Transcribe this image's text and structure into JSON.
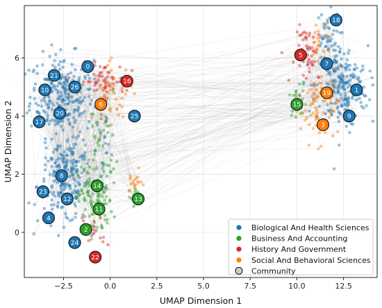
{
  "chart_data": {
    "type": "scatter",
    "title": "",
    "xlabel": "UMAP Dimension 1",
    "ylabel": "UMAP Dimension 2",
    "xlim": [
      -4.6,
      14.3
    ],
    "ylim": [
      -1.55,
      7.8
    ],
    "x_ticks": [
      -2.5,
      0.0,
      2.5,
      5.0,
      7.5,
      10.0,
      12.5
    ],
    "x_tick_labels": [
      "−2.5",
      "0.0",
      "2.5",
      "5.0",
      "7.5",
      "10.0",
      "12.5"
    ],
    "y_ticks": [
      0,
      2,
      4,
      6
    ],
    "y_tick_labels": [
      "0",
      "2",
      "4",
      "6"
    ],
    "grid": true,
    "legend_position": "bottom-right",
    "categories": [
      {
        "key": "bio",
        "label": "Biological And Health Sciences",
        "color": "#1f77b4"
      },
      {
        "key": "bus",
        "label": "Business And Accounting",
        "color": "#2ca02c"
      },
      {
        "key": "his",
        "label": "History And Government",
        "color": "#d62728"
      },
      {
        "key": "soc",
        "label": "Social And Behavioral Sciences",
        "color": "#ff7f0e"
      }
    ],
    "community_legend_label": "Community",
    "communities": [
      {
        "id": "0",
        "x": -1.2,
        "y": 5.7,
        "category": "bio"
      },
      {
        "id": "1",
        "x": 13.2,
        "y": 4.9,
        "category": "bio"
      },
      {
        "id": "2",
        "x": -1.3,
        "y": 0.1,
        "category": "bus"
      },
      {
        "id": "3",
        "x": 11.4,
        "y": 3.7,
        "category": "soc"
      },
      {
        "id": "4",
        "x": -3.3,
        "y": 0.5,
        "category": "bio"
      },
      {
        "id": "5",
        "x": 10.2,
        "y": 6.1,
        "category": "his"
      },
      {
        "id": "6",
        "x": -0.5,
        "y": 4.4,
        "category": "soc"
      },
      {
        "id": "7",
        "x": 11.6,
        "y": 5.8,
        "category": "bio"
      },
      {
        "id": "8",
        "x": -2.6,
        "y": 1.95,
        "category": "bio"
      },
      {
        "id": "9",
        "x": 12.8,
        "y": 4.0,
        "category": "bio"
      },
      {
        "id": "10",
        "x": -3.5,
        "y": 4.9,
        "category": "bio"
      },
      {
        "id": "11",
        "x": -0.6,
        "y": 0.8,
        "category": "bus"
      },
      {
        "id": "12",
        "x": -2.3,
        "y": 1.15,
        "category": "bio"
      },
      {
        "id": "13",
        "x": 1.5,
        "y": 1.15,
        "category": "bus"
      },
      {
        "id": "14",
        "x": -0.7,
        "y": 1.6,
        "category": "bus"
      },
      {
        "id": "15",
        "x": 10.0,
        "y": 4.4,
        "category": "bus"
      },
      {
        "id": "16",
        "x": 0.9,
        "y": 5.2,
        "category": "his"
      },
      {
        "id": "17",
        "x": -3.8,
        "y": 3.8,
        "category": "bio"
      },
      {
        "id": "18",
        "x": 12.1,
        "y": 7.3,
        "category": "bio"
      },
      {
        "id": "19",
        "x": 11.6,
        "y": 4.8,
        "category": "soc"
      },
      {
        "id": "20",
        "x": -2.7,
        "y": 4.1,
        "category": "bio"
      },
      {
        "id": "21",
        "x": -3.0,
        "y": 5.4,
        "category": "bio"
      },
      {
        "id": "22",
        "x": -0.8,
        "y": -0.85,
        "category": "his"
      },
      {
        "id": "23",
        "x": -3.6,
        "y": 1.4,
        "category": "bio"
      },
      {
        "id": "24",
        "x": -1.9,
        "y": -0.35,
        "category": "bio"
      },
      {
        "id": "25",
        "x": 1.3,
        "y": 4.0,
        "category": "bio"
      },
      {
        "id": "26",
        "x": -1.9,
        "y": 5.0,
        "category": "bio"
      }
    ],
    "point_clusters": [
      {
        "category": "bio",
        "cx": -2.6,
        "cy": 4.7,
        "sx": 0.85,
        "sy": 0.7,
        "n": 280
      },
      {
        "category": "bio",
        "cx": -2.5,
        "cy": 1.6,
        "sx": 0.7,
        "sy": 0.65,
        "n": 170
      },
      {
        "category": "bio",
        "cx": -2.0,
        "cy": 2.6,
        "sx": 0.5,
        "sy": 0.3,
        "n": 50
      },
      {
        "category": "bio",
        "cx": -0.3,
        "cy": 3.0,
        "sx": 0.3,
        "sy": 0.6,
        "n": 22
      },
      {
        "category": "bio",
        "cx": 12.4,
        "cy": 5.0,
        "sx": 0.7,
        "sy": 0.7,
        "n": 220
      },
      {
        "category": "bio",
        "cx": 11.6,
        "cy": 6.7,
        "sx": 0.35,
        "sy": 0.45,
        "n": 45
      },
      {
        "category": "bus",
        "cx": -0.8,
        "cy": 1.1,
        "sx": 0.45,
        "sy": 0.6,
        "n": 110
      },
      {
        "category": "bus",
        "cx": -0.5,
        "cy": 3.2,
        "sx": 0.4,
        "sy": 0.8,
        "n": 35
      },
      {
        "category": "bus",
        "cx": 1.3,
        "cy": 1.2,
        "sx": 0.15,
        "sy": 0.2,
        "n": 12
      },
      {
        "category": "bus",
        "cx": 10.1,
        "cy": 4.6,
        "sx": 0.25,
        "sy": 0.3,
        "n": 22
      },
      {
        "category": "his",
        "cx": -0.4,
        "cy": 5.2,
        "sx": 0.6,
        "sy": 0.3,
        "n": 60
      },
      {
        "category": "his",
        "cx": 10.7,
        "cy": 6.1,
        "sx": 0.4,
        "sy": 0.5,
        "n": 55
      },
      {
        "category": "his",
        "cx": -0.9,
        "cy": 0.0,
        "sx": 0.3,
        "sy": 0.4,
        "n": 14
      },
      {
        "category": "soc",
        "cx": 0.2,
        "cy": 4.8,
        "sx": 0.55,
        "sy": 0.5,
        "n": 45
      },
      {
        "category": "soc",
        "cx": 11.2,
        "cy": 4.3,
        "sx": 0.5,
        "sy": 0.6,
        "n": 75
      },
      {
        "category": "soc",
        "cx": 1.3,
        "cy": 1.7,
        "sx": 0.2,
        "sy": 0.2,
        "n": 18
      },
      {
        "category": "soc",
        "cx": 11.2,
        "cy": 6.6,
        "sx": 0.3,
        "sy": 0.5,
        "n": 22
      }
    ],
    "edge_count": 900
  }
}
